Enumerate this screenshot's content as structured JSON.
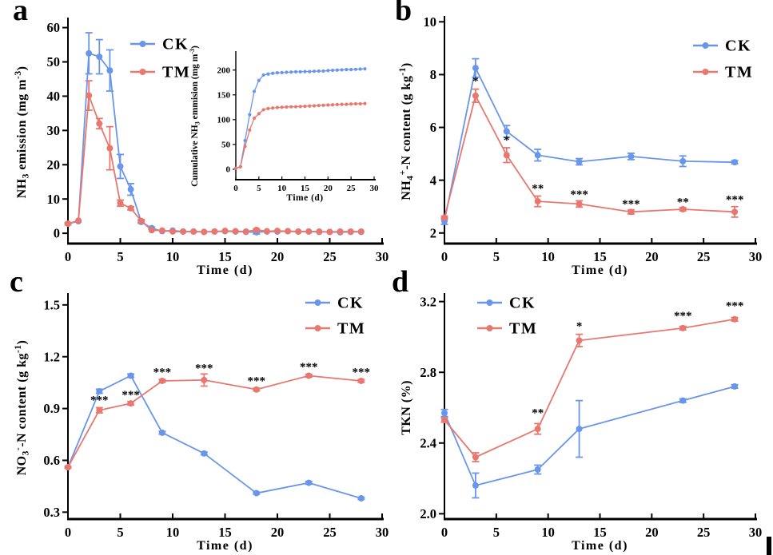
{
  "panel_letters": {
    "a": "a",
    "b": "b",
    "c": "c",
    "d": "d"
  },
  "colors": {
    "ck": "#6996eb",
    "tm": "#e8786f",
    "axis": "#000000",
    "background": "#ffffff",
    "annotation": "#000000"
  },
  "chart_data": [
    {
      "id": "panel-a",
      "type": "line",
      "xlabel": "Time (d)",
      "ylabel": [
        {
          "t": "NH"
        },
        {
          "t": "3",
          "s": "sub"
        },
        {
          "t": " emission (mg m"
        },
        {
          "t": "-3",
          "s": "sup"
        },
        {
          "t": ")"
        }
      ],
      "xlim": [
        0,
        30
      ],
      "ylim": [
        -3,
        62
      ],
      "xticks": [
        0,
        5,
        10,
        15,
        20,
        25,
        30
      ],
      "xtick_labels": [
        "0",
        "5",
        "10",
        "15",
        "20",
        "25",
        "30"
      ],
      "yticks": [
        0,
        10,
        20,
        30,
        40,
        50,
        60
      ],
      "ytick_labels": [
        "0",
        "10",
        "20",
        "30",
        "40",
        "50",
        "60"
      ],
      "legend_position": "inside-top-left",
      "grid": false,
      "x": [
        0,
        1,
        2,
        3,
        4,
        5,
        6,
        7,
        8,
        9,
        10,
        11,
        12,
        13,
        14,
        15,
        16,
        17,
        18,
        19,
        20,
        21,
        22,
        23,
        24,
        25,
        26,
        27,
        28
      ],
      "series": [
        {
          "key": "ck",
          "name": "CK",
          "values": [
            2.8,
            3.5,
            52.5,
            51.5,
            47.5,
            19.5,
            12.8,
            3.3,
            1.5,
            0.6,
            0.8,
            0.5,
            0.5,
            0.4,
            0.5,
            0.6,
            0.5,
            0.4,
            0.3,
            0.5,
            0.5,
            0.6,
            0.5,
            0.5,
            0.4,
            0.4,
            0.3,
            0.4,
            0.4
          ],
          "errors": [
            0.3,
            0.2,
            6,
            5,
            6,
            3.5,
            1.7,
            0.4,
            0.3,
            0,
            0,
            0,
            0,
            0,
            0,
            0,
            0,
            0,
            0.5,
            0,
            0,
            0,
            0,
            0,
            0,
            0,
            0,
            0,
            0
          ]
        },
        {
          "key": "tm",
          "name": "TM",
          "values": [
            2.8,
            3.7,
            40.2,
            32,
            24.8,
            8.8,
            7.3,
            3.6,
            0.9,
            0.8,
            0.5,
            0.5,
            0.5,
            0.4,
            0.5,
            0.7,
            0.6,
            0.5,
            1.0,
            0.6,
            0.7,
            0.6,
            0.5,
            0.5,
            0.5,
            0.4,
            0.5,
            0.5,
            0.5
          ],
          "errors": [
            0.3,
            0.2,
            4.3,
            1.5,
            6.3,
            0.9,
            0.5,
            0.4,
            0.2,
            0,
            0,
            0,
            0,
            0,
            0,
            0,
            0,
            0,
            0.3,
            0,
            0,
            0,
            0,
            0,
            0,
            0,
            0,
            0,
            0
          ]
        }
      ],
      "annotations": []
    },
    {
      "id": "panel-a-inset",
      "type": "line",
      "xlabel": "Time (d)",
      "ylabel": [
        {
          "t": "Cumulative NH"
        },
        {
          "t": "3",
          "s": "sub"
        },
        {
          "t": " emmision (mg m"
        },
        {
          "t": "-3",
          "s": "sup"
        },
        {
          "t": ")"
        }
      ],
      "xlim": [
        0,
        30
      ],
      "ylim": [
        -21,
        235
      ],
      "xticks": [
        0,
        5,
        10,
        15,
        20,
        25,
        30
      ],
      "xtick_labels": [
        "0",
        "5",
        "10",
        "15",
        "20",
        "25",
        "30"
      ],
      "yticks": [
        0,
        50,
        100,
        150,
        200
      ],
      "ytick_labels": [
        "0",
        "50",
        "100",
        "150",
        "200"
      ],
      "legend_position": "none",
      "grid": false,
      "x": [
        0,
        1,
        2,
        3,
        4,
        5,
        6,
        7,
        8,
        9,
        10,
        11,
        12,
        13,
        14,
        15,
        16,
        17,
        18,
        19,
        20,
        21,
        22,
        23,
        24,
        25,
        26,
        27,
        28
      ],
      "series": [
        {
          "key": "ck",
          "name": "CK",
          "values": [
            2,
            5,
            58,
            110,
            157,
            179,
            190,
            192,
            193.5,
            194.5,
            195,
            195.5,
            196,
            196.5,
            196.5,
            197,
            197,
            197.5,
            198,
            198,
            199,
            199.5,
            200,
            200.5,
            201,
            201,
            201.5,
            202,
            202.5
          ],
          "errors": [
            0,
            0,
            0,
            0,
            0,
            0,
            0,
            0,
            0,
            0,
            0,
            0,
            0,
            0,
            0,
            0,
            0,
            0,
            0,
            0,
            0,
            0,
            0,
            0,
            0,
            0,
            0,
            0,
            0
          ]
        },
        {
          "key": "tm",
          "name": "TM",
          "values": [
            2,
            5,
            46,
            79,
            103,
            112,
            120,
            122.5,
            123.5,
            124.5,
            125,
            125.5,
            126,
            126,
            126.5,
            127,
            127.5,
            128,
            128.5,
            129,
            129.5,
            130,
            130.5,
            131,
            131,
            131.5,
            132,
            132,
            132.5
          ],
          "errors": [
            0,
            0,
            0,
            0,
            0,
            0,
            0,
            0,
            0,
            0,
            0,
            0,
            0,
            0,
            0,
            0,
            0,
            0,
            0,
            0,
            0,
            0,
            0,
            0,
            0,
            0,
            0,
            0,
            0
          ]
        }
      ],
      "annotations": []
    },
    {
      "id": "panel-b",
      "type": "line",
      "xlabel": "Time (d)",
      "ylabel": [
        {
          "t": "NH"
        },
        {
          "t": "4",
          "s": "sub"
        },
        {
          "t": "+",
          "s": "sup"
        },
        {
          "t": "-N content (g kg"
        },
        {
          "t": "-1",
          "s": "sup"
        },
        {
          "t": ")"
        }
      ],
      "xlim": [
        0,
        30
      ],
      "ylim": [
        1.6,
        10.1
      ],
      "xticks": [
        0,
        5,
        10,
        15,
        20,
        25,
        30
      ],
      "xtick_labels": [
        "0",
        "5",
        "10",
        "15",
        "20",
        "25",
        "30"
      ],
      "yticks": [
        2,
        4,
        6,
        8,
        10
      ],
      "ytick_labels": [
        "2",
        "4",
        "6",
        "8",
        "10"
      ],
      "legend_position": "inside-top-right",
      "grid": false,
      "x": [
        0,
        3,
        6,
        9,
        13,
        18,
        23,
        28
      ],
      "series": [
        {
          "key": "ck",
          "name": "CK",
          "values": [
            2.45,
            8.25,
            5.85,
            4.95,
            4.7,
            4.9,
            4.72,
            4.68
          ],
          "errors": [
            0.12,
            0.35,
            0.22,
            0.22,
            0.12,
            0.12,
            0.2,
            0.06
          ]
        },
        {
          "key": "tm",
          "name": "TM",
          "values": [
            2.58,
            7.2,
            4.95,
            3.2,
            3.1,
            2.8,
            2.9,
            2.8
          ],
          "errors": [
            0.06,
            0.25,
            0.28,
            0.2,
            0.12,
            0.08,
            0.06,
            0.2
          ]
        }
      ],
      "annotations": [
        {
          "x": 3,
          "y": 7.75,
          "t": "*"
        },
        {
          "x": 6,
          "y": 5.52,
          "t": "*"
        },
        {
          "x": 9,
          "y": 3.68,
          "t": "**"
        },
        {
          "x": 13,
          "y": 3.46,
          "t": "***"
        },
        {
          "x": 18,
          "y": 3.1,
          "t": "***"
        },
        {
          "x": 23,
          "y": 3.18,
          "t": "**"
        },
        {
          "x": 28,
          "y": 3.26,
          "t": "***"
        }
      ]
    },
    {
      "id": "panel-c",
      "type": "line",
      "xlabel": "Time (d)",
      "ylabel": [
        {
          "t": "NO"
        },
        {
          "t": "3",
          "s": "sub"
        },
        {
          "t": "-",
          "s": "sup"
        },
        {
          "t": "-N content (g kg"
        },
        {
          "t": "-1",
          "s": "sup"
        },
        {
          "t": ")"
        }
      ],
      "xlim": [
        0,
        30
      ],
      "ylim": [
        0.26,
        1.55
      ],
      "xticks": [
        0,
        5,
        10,
        15,
        20,
        25,
        30
      ],
      "xtick_labels": [
        "0",
        "5",
        "10",
        "15",
        "20",
        "25",
        "30"
      ],
      "yticks": [
        0.3,
        0.6,
        0.9,
        1.2,
        1.5
      ],
      "ytick_labels": [
        "0.3",
        "0.6",
        "0.9",
        "1.2",
        "1.5"
      ],
      "legend_position": "inside-top-right",
      "grid": false,
      "x": [
        0,
        3,
        6,
        9,
        13,
        18,
        23,
        28
      ],
      "series": [
        {
          "key": "ck",
          "name": "CK",
          "values": [
            0.56,
            1.0,
            1.09,
            0.76,
            0.64,
            0.41,
            0.47,
            0.38
          ],
          "errors": [
            0.005,
            0.012,
            0.01,
            0.008,
            0.008,
            0.006,
            0.008,
            0.006
          ]
        },
        {
          "key": "tm",
          "name": "TM",
          "values": [
            0.56,
            0.89,
            0.93,
            1.06,
            1.065,
            1.01,
            1.09,
            1.06
          ],
          "errors": [
            0.005,
            0.015,
            0.01,
            0.008,
            0.035,
            0.008,
            0.008,
            0.008
          ]
        }
      ],
      "annotations": [
        {
          "x": 3,
          "y": 0.95,
          "t": "***"
        },
        {
          "x": 6,
          "y": 0.98,
          "t": "***"
        },
        {
          "x": 9,
          "y": 1.11,
          "t": "***"
        },
        {
          "x": 13,
          "y": 1.135,
          "t": "***"
        },
        {
          "x": 18,
          "y": 1.06,
          "t": "***"
        },
        {
          "x": 23,
          "y": 1.14,
          "t": "***"
        },
        {
          "x": 28,
          "y": 1.11,
          "t": "***"
        }
      ]
    },
    {
      "id": "panel-d",
      "type": "line",
      "xlabel": "Time (d)",
      "ylabel": [
        {
          "t": "TKN (%)"
        }
      ],
      "xlim": [
        0,
        30
      ],
      "ylim": [
        1.97,
        3.23
      ],
      "xticks": [
        0,
        5,
        10,
        15,
        20,
        25,
        30
      ],
      "xtick_labels": [
        "0",
        "5",
        "10",
        "15",
        "20",
        "25",
        "30"
      ],
      "yticks": [
        2.0,
        2.4,
        2.8,
        3.2
      ],
      "ytick_labels": [
        "2.0",
        "2.4",
        "2.8",
        "3.2"
      ],
      "legend_position": "inside-top-left",
      "grid": false,
      "x": [
        0,
        3,
        9,
        13,
        23,
        28
      ],
      "series": [
        {
          "key": "ck",
          "name": "CK",
          "values": [
            2.57,
            2.16,
            2.25,
            2.48,
            2.64,
            2.72
          ],
          "errors": [
            0.02,
            0.07,
            0.025,
            0.16,
            0.01,
            0.01
          ]
        },
        {
          "key": "tm",
          "name": "TM",
          "values": [
            2.53,
            2.32,
            2.48,
            2.98,
            3.05,
            3.1
          ],
          "errors": [
            0.012,
            0.025,
            0.03,
            0.035,
            0.01,
            0.01
          ]
        }
      ],
      "annotations": [
        {
          "x": 9,
          "y": 2.57,
          "t": "**"
        },
        {
          "x": 13,
          "y": 3.06,
          "t": "*"
        },
        {
          "x": 23,
          "y": 3.12,
          "t": "***"
        },
        {
          "x": 28,
          "y": 3.175,
          "t": "***"
        }
      ]
    }
  ]
}
